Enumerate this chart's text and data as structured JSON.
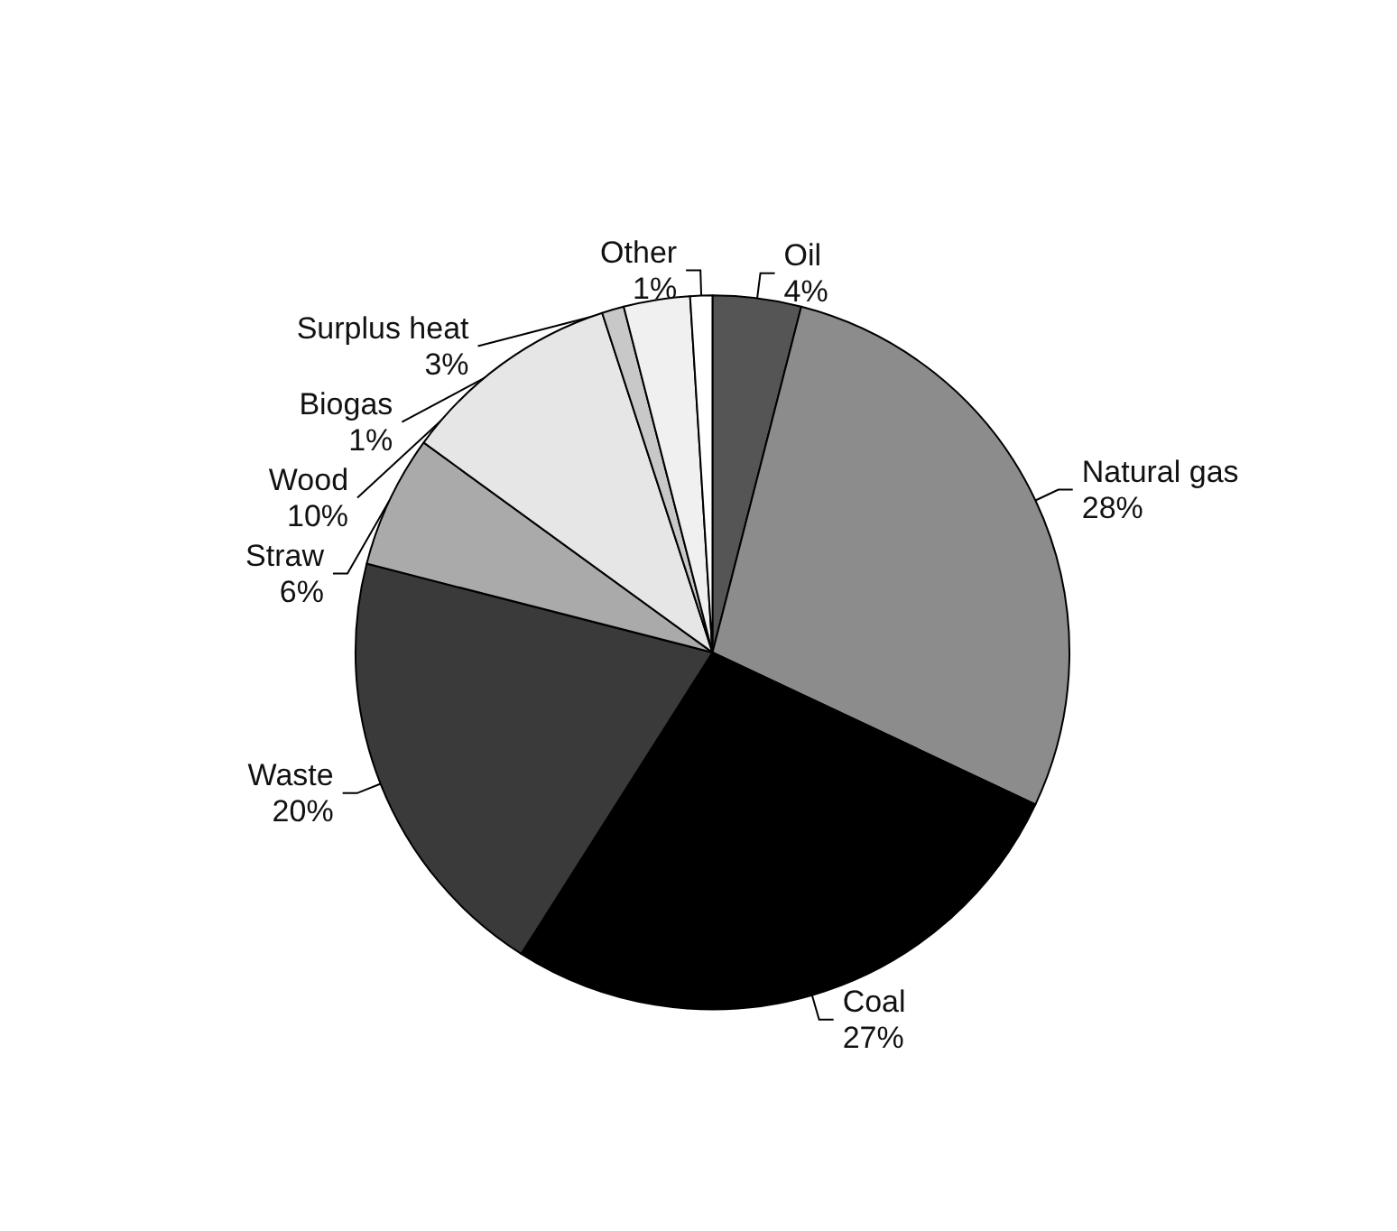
{
  "chart_data": {
    "type": "pie",
    "categories": [
      "Oil",
      "Natural gas",
      "Coal",
      "Waste",
      "Straw",
      "Wood",
      "Biogas",
      "Surplus heat",
      "Other"
    ],
    "values": [
      4,
      28,
      27,
      20,
      6,
      10,
      1,
      3,
      1
    ],
    "value_labels": [
      "4%",
      "28%",
      "27%",
      "20%",
      "6%",
      "10%",
      "1%",
      "3%",
      "1%"
    ],
    "colors": [
      "#555555",
      "#8c8c8c",
      "#000000",
      "#3a3a3a",
      "#aaaaaa",
      "#e6e6e6",
      "#c8c8c8",
      "#f0f0f0",
      "#ffffff"
    ],
    "legend": false
  }
}
